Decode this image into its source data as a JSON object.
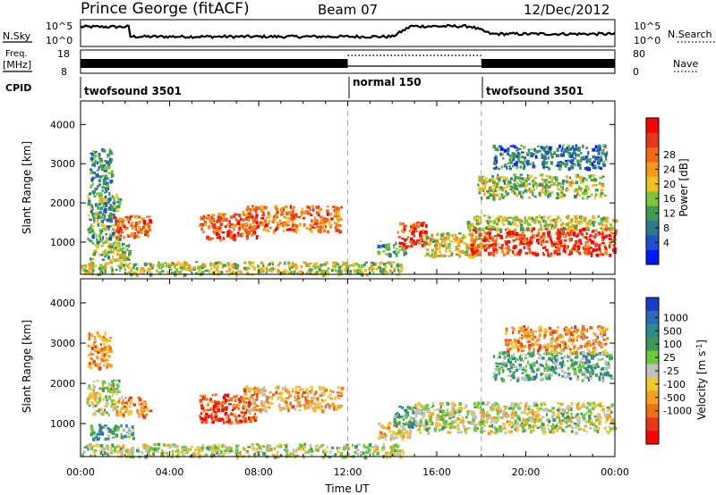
{
  "header": {
    "station": "Prince George (fitACF)",
    "beam": "Beam 07",
    "date": "12/Dec/2012"
  },
  "params": {
    "nsky_label": "N.Sky",
    "nsearch_label": "N.Search",
    "noise_ticks": [
      "10^5",
      "10^0"
    ],
    "freq_label": "Freq.",
    "freq_unit": "[MHz]",
    "freq_ticks": [
      "18",
      "8"
    ],
    "nave_label": "Nave",
    "nave_ticks": [
      "80",
      "0"
    ],
    "cpid_label": "CPID",
    "cpid_segments": [
      {
        "label": "twofsound 3501",
        "start_h": 0,
        "end_h": 12
      },
      {
        "label": "normal 150",
        "start_h": 12,
        "end_h": 18
      },
      {
        "label": "twofsound 3501",
        "start_h": 18,
        "end_h": 24
      }
    ]
  },
  "chart_data": [
    {
      "type": "heatmap",
      "title": "Power",
      "ylabel": "Slant Range [km]",
      "xlabel": "Time UT",
      "xlim": [
        0,
        24
      ],
      "ylim": [
        180,
        4600
      ],
      "y_ticks": [
        "1000",
        "2000",
        "3000",
        "4000"
      ],
      "x_ticks": [
        "00:00",
        "04:00",
        "08:00",
        "12:00",
        "16:00",
        "20:00",
        "00:00"
      ],
      "colorbar": {
        "label": "Power [dB]",
        "ticks": [
          "4",
          "8",
          "12",
          "16",
          "20",
          "24",
          "28"
        ],
        "colors": [
          "#0018ff",
          "#1e50c8",
          "#2e7a8c",
          "#3f9a55",
          "#7cc43c",
          "#eec020",
          "#f59a18",
          "#f06a1a",
          "#e8381c",
          "#ff0000"
        ]
      },
      "regions": [
        {
          "t0": 0.4,
          "t1": 1.4,
          "r0": 2300,
          "r1": 3400,
          "level": 0.3
        },
        {
          "t0": 0.3,
          "t1": 1.8,
          "r0": 1000,
          "r1": 2300,
          "level": 0.35
        },
        {
          "t0": 0.4,
          "t1": 2.2,
          "r0": 560,
          "r1": 1000,
          "level": 0.45
        },
        {
          "t0": 1.4,
          "t1": 3.1,
          "r0": 1150,
          "r1": 1700,
          "level": 0.78
        },
        {
          "t0": 5.3,
          "t1": 7.9,
          "r0": 1100,
          "r1": 1750,
          "level": 0.8
        },
        {
          "t0": 7.2,
          "t1": 11.7,
          "r0": 1300,
          "r1": 1950,
          "level": 0.75
        },
        {
          "t0": 0.0,
          "t1": 14.5,
          "r0": 200,
          "r1": 520,
          "level": 0.5
        },
        {
          "t0": 13.3,
          "t1": 14.6,
          "r0": 700,
          "r1": 1050,
          "level": 0.35
        },
        {
          "t0": 14.2,
          "t1": 15.5,
          "r0": 900,
          "r1": 1550,
          "level": 0.85
        },
        {
          "t0": 15.4,
          "t1": 18.0,
          "r0": 650,
          "r1": 1250,
          "level": 0.55
        },
        {
          "t0": 17.5,
          "t1": 24.0,
          "r0": 700,
          "r1": 1400,
          "level": 0.85
        },
        {
          "t0": 17.3,
          "t1": 24.0,
          "r0": 1350,
          "r1": 1700,
          "level": 0.5
        },
        {
          "t0": 17.8,
          "t1": 23.5,
          "r0": 2150,
          "r1": 2750,
          "level": 0.45
        },
        {
          "t0": 18.5,
          "t1": 23.6,
          "r0": 2900,
          "r1": 3500,
          "level": 0.25
        }
      ]
    },
    {
      "type": "heatmap",
      "title": "Velocity",
      "ylabel": "Slant Range [km]",
      "xlabel": "Time UT",
      "xlim": [
        0,
        24
      ],
      "ylim": [
        180,
        4600
      ],
      "y_ticks": [
        "1000",
        "2000",
        "3000",
        "4000"
      ],
      "x_ticks": [
        "00:00",
        "04:00",
        "08:00",
        "12:00",
        "16:00",
        "20:00",
        "00:00"
      ],
      "colorbar": {
        "label": "Velocity [m s^-1]",
        "ticks": [
          "1000",
          "500",
          "100",
          "25",
          "-25",
          "-100",
          "-500",
          "-1000"
        ],
        "colors": [
          "#1a3ccc",
          "#2d6bb5",
          "#2e8c8c",
          "#3f9a55",
          "#6cc83c",
          "#c0c0c0",
          "#f0c830",
          "#f5a020",
          "#f07018",
          "#e83818",
          "#ff0000"
        ]
      },
      "regions": [
        {
          "t0": 0.3,
          "t1": 1.3,
          "r0": 2400,
          "r1": 3300,
          "level": 0.7
        },
        {
          "t0": 0.2,
          "t1": 1.7,
          "r0": 1250,
          "r1": 2100,
          "level": 0.5
        },
        {
          "t0": 0.4,
          "t1": 2.4,
          "r0": 650,
          "r1": 1000,
          "level": 0.35
        },
        {
          "t0": 1.6,
          "t1": 3.1,
          "r0": 1200,
          "r1": 1700,
          "level": 0.72
        },
        {
          "t0": 5.3,
          "t1": 7.9,
          "r0": 1050,
          "r1": 1750,
          "level": 0.85
        },
        {
          "t0": 7.2,
          "t1": 11.7,
          "r0": 1350,
          "r1": 1950,
          "level": 0.65
        },
        {
          "t0": 0.0,
          "t1": 14.5,
          "r0": 200,
          "r1": 520,
          "level": 0.5
        },
        {
          "t0": 13.3,
          "t1": 14.8,
          "r0": 650,
          "r1": 1050,
          "level": 0.6
        },
        {
          "t0": 14.0,
          "t1": 15.0,
          "r0": 950,
          "r1": 1450,
          "level": 0.3
        },
        {
          "t0": 15.0,
          "t1": 24.0,
          "r0": 800,
          "r1": 1550,
          "level": 0.5
        },
        {
          "t0": 18.5,
          "t1": 23.8,
          "r0": 2100,
          "r1": 2800,
          "level": 0.35
        },
        {
          "t0": 19.0,
          "t1": 23.6,
          "r0": 2800,
          "r1": 3450,
          "level": 0.7
        }
      ]
    }
  ]
}
